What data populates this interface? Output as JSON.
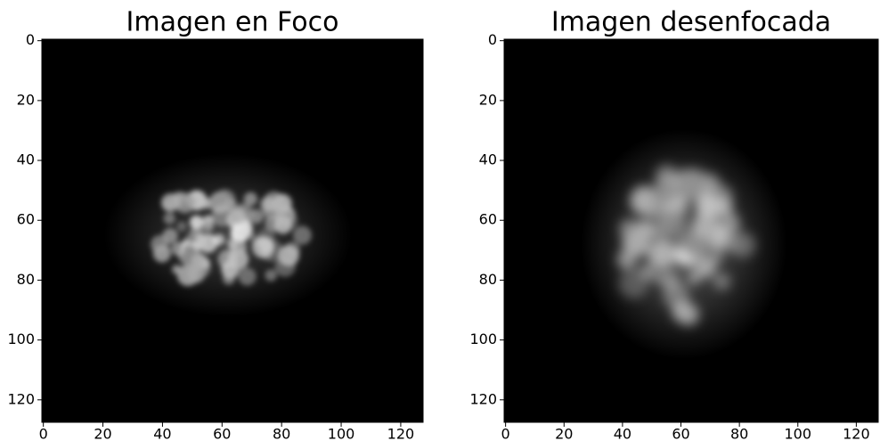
{
  "chart_data": [
    {
      "type": "image",
      "title": "Imagen en Foco",
      "xlim": [
        -0.5,
        127.5
      ],
      "ylim": [
        127.5,
        -0.5
      ],
      "xticks": [
        0,
        20,
        40,
        60,
        80,
        100,
        120
      ],
      "yticks": [
        0,
        20,
        40,
        60,
        80,
        100,
        120
      ],
      "colormap": "gray"
    },
    {
      "type": "image",
      "title": "Imagen desenfocada",
      "xlim": [
        -0.5,
        127.5
      ],
      "ylim": [
        127.5,
        -0.5
      ],
      "xticks": [
        0,
        20,
        40,
        60,
        80,
        100,
        120
      ],
      "yticks": [
        0,
        20,
        40,
        60,
        80,
        100,
        120
      ],
      "colormap": "gray"
    }
  ]
}
